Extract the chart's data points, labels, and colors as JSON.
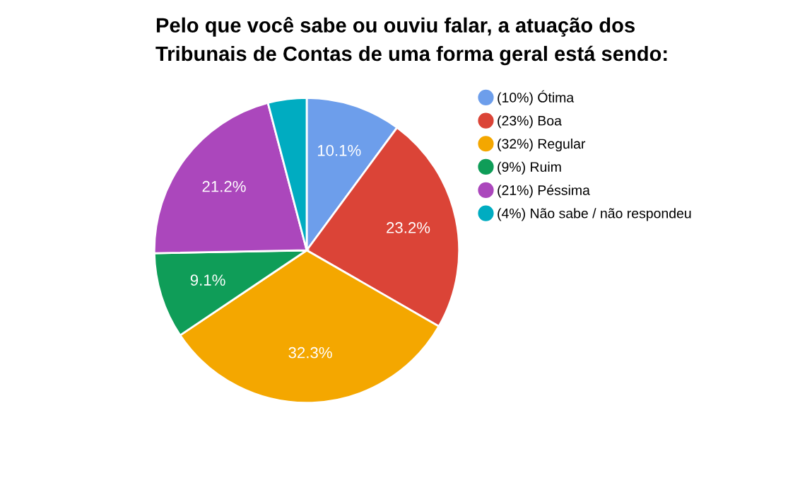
{
  "chart_data": {
    "type": "pie",
    "title": "Pelo que você sabe ou ouviu falar, a atuação dos\nTribunais de Contas de uma forma geral está sendo:",
    "categories": [
      "(10%) Ótima",
      "(23%) Boa",
      "(32%) Regular",
      "(9%) Ruim",
      "(21%) Péssima",
      "(4%) Não sabe / não respondeu"
    ],
    "values": [
      10.1,
      23.2,
      32.3,
      9.1,
      21.2,
      4.1
    ],
    "colors": [
      "#6d9eeb",
      "#db4437",
      "#f4a700",
      "#0f9d58",
      "#ab47bc",
      "#00acc1"
    ],
    "value_labels": [
      "10.1%",
      "23.2%",
      "32.3%",
      "9.1%",
      "21.2%",
      null
    ],
    "legend": "right"
  }
}
